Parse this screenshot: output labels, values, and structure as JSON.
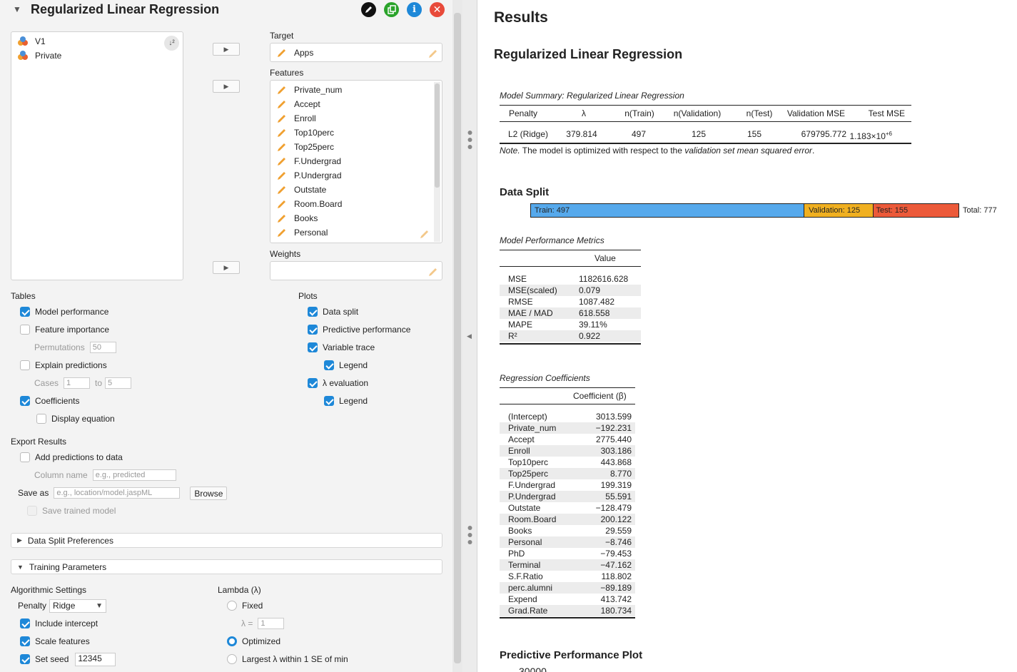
{
  "left": {
    "title": "Regularized Linear Regression",
    "variables": [
      "V1",
      "Private"
    ],
    "target_label": "Target",
    "target_value": "Apps",
    "features_label": "Features",
    "features": [
      "Private_num",
      "Accept",
      "Enroll",
      "Top10perc",
      "Top25perc",
      "F.Undergrad",
      "P.Undergrad",
      "Outstate",
      "Room.Board",
      "Books",
      "Personal"
    ],
    "weights_label": "Weights",
    "tables": {
      "heading": "Tables",
      "model_performance": "Model performance",
      "feature_importance": "Feature importance",
      "permutations_label": "Permutations",
      "permutations_value": "50",
      "explain_predictions": "Explain predictions",
      "cases_label": "Cases",
      "cases_from": "1",
      "cases_to_label": "to",
      "cases_to": "5",
      "coefficients": "Coefficients",
      "display_equation": "Display equation"
    },
    "plots": {
      "heading": "Plots",
      "data_split": "Data split",
      "predictive_performance": "Predictive performance",
      "variable_trace": "Variable trace",
      "legend1": "Legend",
      "lambda_evaluation": "λ evaluation",
      "legend2": "Legend"
    },
    "export": {
      "heading": "Export Results",
      "add_predictions": "Add predictions to data",
      "column_name_label": "Column name",
      "column_name_placeholder": "e.g., predicted",
      "save_as_label": "Save as",
      "save_as_placeholder": "e.g., location/model.jaspML",
      "browse": "Browse",
      "save_trained_model": "Save trained model"
    },
    "data_split_prefs": "Data Split Preferences",
    "training_params": "Training Parameters",
    "algo": {
      "heading": "Algorithmic Settings",
      "penalty_label": "Penalty",
      "penalty_value": "Ridge",
      "include_intercept": "Include intercept",
      "scale_features": "Scale features",
      "set_seed": "Set seed",
      "seed_value": "12345"
    },
    "lambda": {
      "heading": "Lambda (λ)",
      "fixed": "Fixed",
      "lambda_eq": "λ =",
      "lambda_value": "1",
      "optimized": "Optimized",
      "largest": "Largest λ within 1 SE of min"
    }
  },
  "right": {
    "title": "Results",
    "subtitle": "Regularized Linear Regression",
    "summary": {
      "caption": "Model Summary: Regularized Linear Regression",
      "headers": [
        "Penalty",
        "λ",
        "n(Train)",
        "n(Validation)",
        "n(Test)",
        "Validation MSE",
        "Test MSE"
      ],
      "row": [
        "L2 (Ridge)",
        "379.814",
        "497",
        "125",
        "155",
        "679795.772",
        "1.183×10"
      ],
      "test_mse_exp": "+6",
      "note_prefix": "Note.",
      "note_text": " The model is optimized with respect to the ",
      "note_em": "validation set mean squared error",
      "note_end": "."
    },
    "data_split": {
      "heading": "Data Split",
      "train": "Train: 497",
      "validation": "Validation: 125",
      "test": "Test: 155",
      "total": "Total: 777",
      "train_n": 497,
      "validation_n": 125,
      "test_n": 155,
      "train_color": "#56a9ec",
      "validation_color": "#f0b021",
      "test_color": "#ec5a3a"
    },
    "metrics": {
      "caption": "Model Performance Metrics",
      "header": "Value",
      "rows": [
        [
          "MSE",
          "1182616.628"
        ],
        [
          "MSE(scaled)",
          "0.079"
        ],
        [
          "RMSE",
          "1087.482"
        ],
        [
          "MAE / MAD",
          "618.558"
        ],
        [
          "MAPE",
          "39.11%"
        ],
        [
          "R²",
          "0.922"
        ]
      ]
    },
    "coefs": {
      "caption": "Regression Coefficients",
      "header": "Coefficient (β)",
      "rows": [
        [
          "(Intercept)",
          "3013.599"
        ],
        [
          "Private_num",
          "−192.231"
        ],
        [
          "Accept",
          "2775.440"
        ],
        [
          "Enroll",
          "303.186"
        ],
        [
          "Top10perc",
          "443.868"
        ],
        [
          "Top25perc",
          "8.770"
        ],
        [
          "F.Undergrad",
          "199.319"
        ],
        [
          "P.Undergrad",
          "55.591"
        ],
        [
          "Outstate",
          "−128.479"
        ],
        [
          "Room.Board",
          "200.122"
        ],
        [
          "Books",
          "29.559"
        ],
        [
          "Personal",
          "−8.746"
        ],
        [
          "PhD",
          "−79.453"
        ],
        [
          "Terminal",
          "−47.162"
        ],
        [
          "S.F.Ratio",
          "118.802"
        ],
        [
          "perc.alumni",
          "−89.189"
        ],
        [
          "Expend",
          "413.742"
        ],
        [
          "Grad.Rate",
          "180.734"
        ]
      ]
    },
    "pred_plot": {
      "heading": "Predictive Performance Plot",
      "ytick": "30000"
    }
  }
}
